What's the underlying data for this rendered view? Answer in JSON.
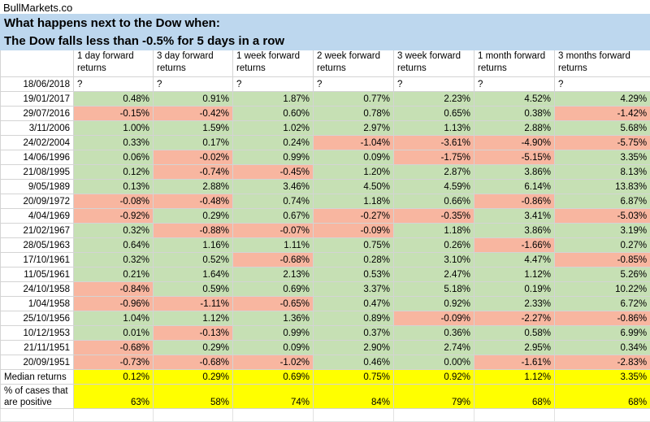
{
  "brand": "BullMarkets.co",
  "title_line1": "What happens next to the Dow when:",
  "title_line2": "The Dow falls less than -0.5% for 5 days in a row",
  "headers": [
    "1 day forward returns",
    "3 day forward returns",
    "1 week forward returns",
    "2 week forward returns",
    "3 week forward returns",
    "1 month forward returns",
    "3 months forward returns"
  ],
  "current_row": {
    "date": "18/06/2018",
    "values": [
      "?",
      "?",
      "?",
      "?",
      "?",
      "?",
      "?"
    ]
  },
  "rows": [
    {
      "date": "19/01/2017",
      "values": [
        "0.48%",
        "0.91%",
        "1.87%",
        "0.77%",
        "2.23%",
        "4.52%",
        "4.29%"
      ]
    },
    {
      "date": "29/07/2016",
      "values": [
        "-0.15%",
        "-0.42%",
        "0.60%",
        "0.78%",
        "0.65%",
        "0.38%",
        "-1.42%"
      ]
    },
    {
      "date": "3/11/2006",
      "values": [
        "1.00%",
        "1.59%",
        "1.02%",
        "2.97%",
        "1.13%",
        "2.88%",
        "5.68%"
      ]
    },
    {
      "date": "24/02/2004",
      "values": [
        "0.33%",
        "0.17%",
        "0.24%",
        "-1.04%",
        "-3.61%",
        "-4.90%",
        "-5.75%"
      ]
    },
    {
      "date": "14/06/1996",
      "values": [
        "0.06%",
        "-0.02%",
        "0.99%",
        "0.09%",
        "-1.75%",
        "-5.15%",
        "3.35%"
      ]
    },
    {
      "date": "21/08/1995",
      "values": [
        "0.12%",
        "-0.74%",
        "-0.45%",
        "1.20%",
        "2.87%",
        "3.86%",
        "8.13%"
      ]
    },
    {
      "date": "9/05/1989",
      "values": [
        "0.13%",
        "2.88%",
        "3.46%",
        "4.50%",
        "4.59%",
        "6.14%",
        "13.83%"
      ]
    },
    {
      "date": "20/09/1972",
      "values": [
        "-0.08%",
        "-0.48%",
        "0.74%",
        "1.18%",
        "0.66%",
        "-0.86%",
        "6.87%"
      ]
    },
    {
      "date": "4/04/1969",
      "values": [
        "-0.92%",
        "0.29%",
        "0.67%",
        "-0.27%",
        "-0.35%",
        "3.41%",
        "-5.03%"
      ]
    },
    {
      "date": "21/02/1967",
      "values": [
        "0.32%",
        "-0.88%",
        "-0.07%",
        "-0.09%",
        "1.18%",
        "3.86%",
        "3.19%"
      ]
    },
    {
      "date": "28/05/1963",
      "values": [
        "0.64%",
        "1.16%",
        "1.11%",
        "0.75%",
        "0.26%",
        "-1.66%",
        "0.27%"
      ]
    },
    {
      "date": "17/10/1961",
      "values": [
        "0.32%",
        "0.52%",
        "-0.68%",
        "0.28%",
        "3.10%",
        "4.47%",
        "-0.85%"
      ]
    },
    {
      "date": "11/05/1961",
      "values": [
        "0.21%",
        "1.64%",
        "2.13%",
        "0.53%",
        "2.47%",
        "1.12%",
        "5.26%"
      ]
    },
    {
      "date": "24/10/1958",
      "values": [
        "-0.84%",
        "0.59%",
        "0.69%",
        "3.37%",
        "5.18%",
        "0.19%",
        "10.22%"
      ]
    },
    {
      "date": "1/04/1958",
      "values": [
        "-0.96%",
        "-1.11%",
        "-0.65%",
        "0.47%",
        "0.92%",
        "2.33%",
        "6.72%"
      ]
    },
    {
      "date": "25/10/1956",
      "values": [
        "1.04%",
        "1.12%",
        "1.36%",
        "0.89%",
        "-0.09%",
        "-2.27%",
        "-0.86%"
      ]
    },
    {
      "date": "10/12/1953",
      "values": [
        "0.01%",
        "-0.13%",
        "0.99%",
        "0.37%",
        "0.36%",
        "0.58%",
        "6.99%"
      ]
    },
    {
      "date": "21/11/1951",
      "values": [
        "-0.68%",
        "0.29%",
        "0.09%",
        "2.90%",
        "2.74%",
        "2.95%",
        "0.34%"
      ]
    },
    {
      "date": "20/09/1951",
      "values": [
        "-0.73%",
        "-0.68%",
        "-1.02%",
        "0.46%",
        "0.00%",
        "-1.61%",
        "-2.83%"
      ]
    }
  ],
  "median": {
    "label": "Median returns",
    "values": [
      "0.12%",
      "0.29%",
      "0.69%",
      "0.75%",
      "0.92%",
      "1.12%",
      "3.35%"
    ]
  },
  "positive": {
    "label_line1": "% of cases that",
    "label_line2": "are positive",
    "values": [
      "63%",
      "58%",
      "74%",
      "84%",
      "79%",
      "68%",
      "68%"
    ]
  },
  "colors": {
    "positive_fill": "#c6e0b4",
    "negative_fill": "#f8b6a0",
    "summary_fill": "#ffff00",
    "title_fill": "#bdd7ee"
  }
}
